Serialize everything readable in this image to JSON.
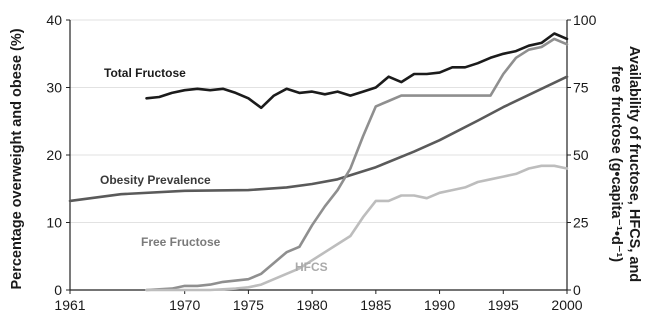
{
  "chart_data": {
    "type": "line",
    "x_ticks": [
      "1961",
      "1970",
      "1975",
      "1980",
      "1985",
      "1990",
      "1995",
      "2000"
    ],
    "xlim": [
      1961,
      2000
    ],
    "left_axis": {
      "label": "Percentage overweight and obese (%)",
      "range": [
        0,
        40
      ],
      "ticks": [
        "0",
        "10",
        "20",
        "30",
        "40"
      ]
    },
    "right_axis": {
      "label_line1": "Availability of fructose, HFCS, and",
      "label_line2": "free fructose (g•capita⁻¹•d⁻¹)",
      "range": [
        0,
        100
      ],
      "ticks": [
        "0",
        "25",
        "50",
        "75",
        "100"
      ]
    },
    "series": [
      {
        "name": "Total Fructose",
        "axis": "right",
        "color": "#1b1b1b",
        "x": [
          1967,
          1968,
          1969,
          1970,
          1971,
          1972,
          1973,
          1974,
          1975,
          1976,
          1977,
          1978,
          1979,
          1980,
          1981,
          1982,
          1983,
          1984,
          1985,
          1986,
          1987,
          1988,
          1989,
          1990,
          1991,
          1992,
          1993,
          1994,
          1995,
          1996,
          1997,
          1998,
          1999,
          2000
        ],
        "y": [
          71,
          71.5,
          73,
          74,
          74.5,
          74,
          74.5,
          73,
          71,
          67.5,
          72,
          74.5,
          73,
          73.5,
          72.5,
          73.5,
          72,
          73.5,
          75,
          79,
          77,
          80,
          80,
          80.5,
          82.5,
          82.5,
          84,
          86,
          87.5,
          88.5,
          90.5,
          91.5,
          95,
          93
        ]
      },
      {
        "name": "Obesity Prevalence",
        "axis": "left",
        "color": "#5a5a5a",
        "x": [
          1961,
          1965,
          1970,
          1975,
          1978,
          1980,
          1982,
          1985,
          1988,
          1990,
          1993,
          1995,
          2000
        ],
        "y": [
          13.2,
          14.2,
          14.7,
          14.8,
          15.2,
          15.7,
          16.4,
          18.2,
          20.5,
          22.2,
          25.1,
          27.1,
          31.6
        ]
      },
      {
        "name": "Free Fructose",
        "axis": "right",
        "color": "#8f8f8f",
        "x": [
          1967,
          1969,
          1970,
          1971,
          1972,
          1973,
          1974,
          1975,
          1976,
          1977,
          1978,
          1979,
          1980,
          1981,
          1982,
          1983,
          1984,
          1985,
          1986,
          1987,
          1988,
          1989,
          1990,
          1991,
          1992,
          1993,
          1994,
          1995,
          1996,
          1997,
          1998,
          1999,
          2000
        ],
        "y": [
          0,
          0.5,
          1.5,
          1.5,
          2,
          3,
          3.5,
          4,
          6,
          10,
          14,
          16,
          24,
          31,
          37,
          45,
          57,
          68,
          70,
          72,
          72,
          72,
          72,
          72,
          72,
          72,
          72,
          80,
          86,
          89,
          90,
          93,
          91
        ]
      },
      {
        "name": "HFCS",
        "axis": "right",
        "color": "#bdbdbd",
        "x": [
          1967,
          1970,
          1972,
          1974,
          1975,
          1976,
          1977,
          1978,
          1979,
          1980,
          1981,
          1982,
          1983,
          1984,
          1985,
          1986,
          1987,
          1988,
          1989,
          1990,
          1991,
          1992,
          1993,
          1994,
          1995,
          1996,
          1997,
          1998,
          1999,
          2000
        ],
        "y": [
          0,
          0,
          0,
          0.5,
          1,
          2,
          4,
          6,
          8,
          11,
          14,
          17,
          20,
          27,
          33,
          33,
          35,
          35,
          34,
          36,
          37,
          38,
          40,
          41,
          42,
          43,
          45,
          46,
          46,
          45
        ]
      }
    ],
    "annotations": [
      "Total Fructose",
      "Obesity Prevalence",
      "Free Fructose",
      "HFCS"
    ]
  }
}
